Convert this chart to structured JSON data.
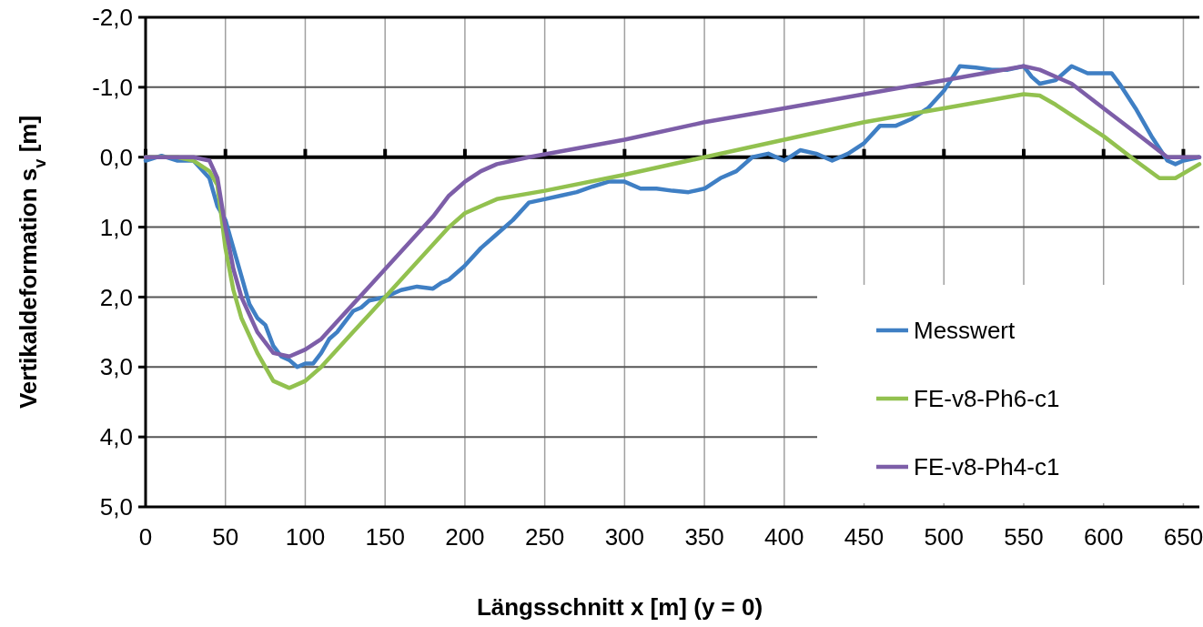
{
  "chart_data": {
    "type": "line",
    "xlabel": "Längsschnitt x [m] (y = 0)",
    "ylabel": "Vertikaldeformation s$_{v}$  [m]",
    "xlim": [
      0,
      660
    ],
    "xticks": [
      0,
      50,
      100,
      150,
      200,
      250,
      300,
      350,
      400,
      450,
      500,
      550,
      600,
      650
    ],
    "ylim": [
      5,
      -2
    ],
    "yticks": [
      {
        "value": -2,
        "label": "-2,0"
      },
      {
        "value": -1,
        "label": "-1,0"
      },
      {
        "value": 0,
        "label": "0,0"
      },
      {
        "value": 1,
        "label": "1,0"
      },
      {
        "value": 2,
        "label": "2,0"
      },
      {
        "value": 3,
        "label": "3,0"
      },
      {
        "value": 4,
        "label": "4,0"
      },
      {
        "value": 5,
        "label": "5,0"
      }
    ],
    "grid": true,
    "legend": "bottom right",
    "marker": "none",
    "line_style": "solid",
    "series": [
      {
        "name": "Messwert",
        "color": "#3f7fc4",
        "x": [
          0,
          10,
          20,
          30,
          40,
          45,
          50,
          55,
          60,
          65,
          70,
          75,
          80,
          85,
          90,
          95,
          100,
          105,
          110,
          115,
          120,
          125,
          130,
          135,
          140,
          150,
          160,
          170,
          180,
          185,
          190,
          200,
          210,
          220,
          230,
          240,
          250,
          260,
          270,
          280,
          290,
          300,
          310,
          320,
          330,
          340,
          350,
          360,
          370,
          380,
          390,
          400,
          410,
          420,
          430,
          440,
          450,
          460,
          470,
          480,
          490,
          500,
          510,
          520,
          530,
          540,
          550,
          555,
          560,
          570,
          580,
          590,
          600,
          605,
          610,
          620,
          630,
          640,
          645,
          650,
          660
        ],
        "values": [
          0.05,
          -0.02,
          0.05,
          0.05,
          0.3,
          0.7,
          0.9,
          1.3,
          1.7,
          2.1,
          2.3,
          2.4,
          2.7,
          2.85,
          2.9,
          3.0,
          2.95,
          2.95,
          2.8,
          2.6,
          2.5,
          2.35,
          2.2,
          2.15,
          2.05,
          2.0,
          1.9,
          1.85,
          1.88,
          1.8,
          1.75,
          1.55,
          1.3,
          1.1,
          0.9,
          0.65,
          0.6,
          0.55,
          0.5,
          0.42,
          0.35,
          0.35,
          0.45,
          0.45,
          0.48,
          0.5,
          0.45,
          0.3,
          0.2,
          0.0,
          -0.05,
          0.05,
          -0.1,
          -0.05,
          0.05,
          -0.05,
          -0.2,
          -0.45,
          -0.45,
          -0.55,
          -0.7,
          -0.95,
          -1.3,
          -1.28,
          -1.25,
          -1.25,
          -1.3,
          -1.15,
          -1.05,
          -1.1,
          -1.3,
          -1.2,
          -1.2,
          -1.2,
          -1.05,
          -0.7,
          -0.3,
          0.05,
          0.1,
          0.05,
          0.0
        ]
      },
      {
        "name": "FE-v8-Ph6-c1",
        "color": "#92c14f",
        "x": [
          0,
          20,
          30,
          40,
          45,
          50,
          55,
          60,
          70,
          80,
          90,
          100,
          110,
          120,
          130,
          140,
          150,
          160,
          170,
          180,
          190,
          200,
          210,
          220,
          250,
          300,
          350,
          400,
          450,
          500,
          550,
          560,
          570,
          600,
          620,
          635,
          645,
          660
        ],
        "values": [
          0,
          0,
          0.05,
          0.2,
          0.4,
          1.3,
          1.9,
          2.3,
          2.8,
          3.2,
          3.3,
          3.2,
          3.0,
          2.75,
          2.5,
          2.25,
          2.0,
          1.75,
          1.5,
          1.25,
          1.0,
          0.8,
          0.7,
          0.6,
          0.48,
          0.25,
          0.0,
          -0.25,
          -0.5,
          -0.7,
          -0.9,
          -0.88,
          -0.75,
          -0.3,
          0.05,
          0.3,
          0.3,
          0.1
        ]
      },
      {
        "name": "FE-v8-Ph4-c1",
        "color": "#7d5ea8",
        "x": [
          0,
          30,
          40,
          45,
          50,
          55,
          60,
          70,
          80,
          90,
          100,
          110,
          120,
          130,
          140,
          150,
          160,
          170,
          180,
          190,
          200,
          210,
          220,
          240,
          300,
          350,
          400,
          450,
          500,
          550,
          560,
          580,
          600,
          620,
          640,
          660
        ],
        "values": [
          0,
          0,
          0.05,
          0.3,
          1.0,
          1.6,
          2.0,
          2.5,
          2.8,
          2.85,
          2.75,
          2.6,
          2.35,
          2.1,
          1.85,
          1.6,
          1.35,
          1.1,
          0.85,
          0.55,
          0.35,
          0.2,
          0.1,
          0.0,
          -0.25,
          -0.5,
          -0.7,
          -0.9,
          -1.1,
          -1.3,
          -1.25,
          -1.05,
          -0.7,
          -0.35,
          0.0,
          0.0
        ]
      }
    ]
  }
}
